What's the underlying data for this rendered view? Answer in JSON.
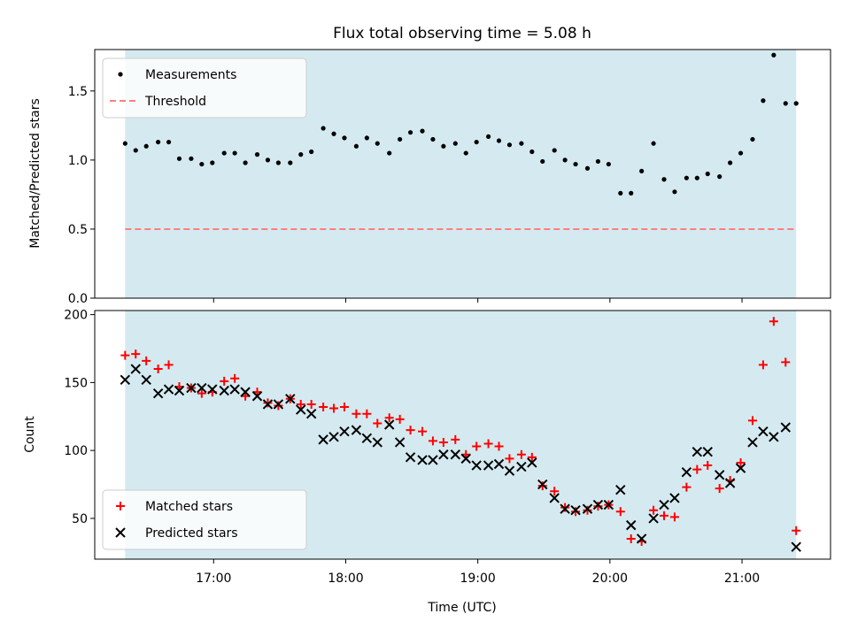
{
  "figure": {
    "title": "Flux total observing time = 5.08 h"
  },
  "chart_data": [
    {
      "type": "scatter",
      "ylabel": "Matched/Predicted stars",
      "xlim": [
        16.1,
        21.67
      ],
      "ylim": [
        0,
        1.8
      ],
      "yticks": [
        0.0,
        0.5,
        1.0,
        1.5
      ],
      "shaded_span": [
        16.33,
        21.41
      ],
      "shade_color": "#d4eaf0",
      "legend_position": "upper left",
      "series": [
        {
          "name": "Measurements",
          "marker": "dot",
          "color": "#000000",
          "x": [
            16.33,
            16.41,
            16.49,
            16.58,
            16.66,
            16.74,
            16.83,
            16.91,
            16.99,
            17.08,
            17.16,
            17.24,
            17.33,
            17.41,
            17.49,
            17.58,
            17.66,
            17.74,
            17.83,
            17.91,
            17.99,
            18.08,
            18.16,
            18.24,
            18.33,
            18.41,
            18.49,
            18.58,
            18.66,
            18.74,
            18.83,
            18.91,
            18.99,
            19.08,
            19.16,
            19.24,
            19.33,
            19.41,
            19.49,
            19.58,
            19.66,
            19.74,
            19.83,
            19.91,
            19.99,
            20.08,
            20.16,
            20.24,
            20.33,
            20.41,
            20.49,
            20.58,
            20.66,
            20.74,
            20.83,
            20.91,
            20.99,
            21.08,
            21.16,
            21.24,
            21.33,
            21.41
          ],
          "y": [
            1.12,
            1.07,
            1.1,
            1.13,
            1.13,
            1.01,
            1.01,
            0.97,
            0.98,
            1.05,
            1.05,
            0.98,
            1.04,
            1.0,
            0.98,
            0.98,
            1.04,
            1.06,
            1.23,
            1.19,
            1.16,
            1.1,
            1.16,
            1.12,
            1.05,
            1.15,
            1.2,
            1.21,
            1.15,
            1.1,
            1.12,
            1.05,
            1.13,
            1.17,
            1.14,
            1.11,
            1.12,
            1.06,
            0.99,
            1.07,
            1.0,
            0.97,
            0.94,
            0.99,
            0.97,
            0.76,
            0.76,
            0.92,
            1.12,
            0.86,
            0.77,
            0.87,
            0.87,
            0.9,
            0.88,
            0.98,
            1.05,
            1.15,
            1.43,
            1.76,
            1.41,
            1.41
          ]
        },
        {
          "name": "Threshold",
          "marker": "dashed-line",
          "color": "#ff7f7f",
          "y": 0.5
        }
      ]
    },
    {
      "type": "scatter",
      "ylabel": "Count",
      "xlabel": "Time (UTC)",
      "xlim": [
        16.1,
        21.67
      ],
      "ylim": [
        20,
        203
      ],
      "yticks": [
        50,
        100,
        150,
        200
      ],
      "xticks": [
        17,
        18,
        19,
        20,
        21
      ],
      "xtick_labels": [
        "17:00",
        "18:00",
        "19:00",
        "20:00",
        "21:00"
      ],
      "shaded_span": [
        16.33,
        21.41
      ],
      "shade_color": "#d4eaf0",
      "legend_position": "lower left",
      "series": [
        {
          "name": "Matched stars",
          "marker": "plus",
          "color": "#ff0000",
          "x": [
            16.33,
            16.41,
            16.49,
            16.58,
            16.66,
            16.74,
            16.83,
            16.91,
            16.99,
            17.08,
            17.16,
            17.24,
            17.33,
            17.41,
            17.49,
            17.58,
            17.66,
            17.74,
            17.83,
            17.91,
            17.99,
            18.08,
            18.16,
            18.24,
            18.33,
            18.41,
            18.49,
            18.58,
            18.66,
            18.74,
            18.83,
            18.91,
            18.99,
            19.08,
            19.16,
            19.24,
            19.33,
            19.41,
            19.49,
            19.58,
            19.66,
            19.74,
            19.83,
            19.91,
            19.99,
            20.08,
            20.16,
            20.24,
            20.33,
            20.41,
            20.49,
            20.58,
            20.66,
            20.74,
            20.83,
            20.91,
            20.99,
            21.08,
            21.16,
            21.24,
            21.33,
            21.41
          ],
          "y": [
            170,
            171,
            166,
            160,
            163,
            147,
            146,
            142,
            143,
            151,
            153,
            140,
            143,
            135,
            133,
            138,
            134,
            134,
            132,
            131,
            132,
            127,
            127,
            120,
            124,
            123,
            115,
            114,
            107,
            106,
            108,
            97,
            103,
            105,
            103,
            94,
            97,
            95,
            74,
            70,
            58,
            55,
            56,
            59,
            60,
            55,
            35,
            33,
            56,
            52,
            51,
            73,
            86,
            89,
            72,
            78,
            91,
            122,
            163,
            195,
            165,
            41
          ]
        },
        {
          "name": "Predicted stars",
          "marker": "x",
          "color": "#000000",
          "x": [
            16.33,
            16.41,
            16.49,
            16.58,
            16.66,
            16.74,
            16.83,
            16.91,
            16.99,
            17.08,
            17.16,
            17.24,
            17.33,
            17.41,
            17.49,
            17.58,
            17.66,
            17.74,
            17.83,
            17.91,
            17.99,
            18.08,
            18.16,
            18.24,
            18.33,
            18.41,
            18.49,
            18.58,
            18.66,
            18.74,
            18.83,
            18.91,
            18.99,
            19.08,
            19.16,
            19.24,
            19.33,
            19.41,
            19.49,
            19.58,
            19.66,
            19.74,
            19.83,
            19.91,
            19.99,
            20.08,
            20.16,
            20.24,
            20.33,
            20.41,
            20.49,
            20.58,
            20.66,
            20.74,
            20.83,
            20.91,
            20.99,
            21.08,
            21.16,
            21.24,
            21.33,
            21.41
          ],
          "y": [
            152,
            160,
            152,
            142,
            145,
            144,
            146,
            146,
            145,
            144,
            145,
            143,
            140,
            134,
            134,
            138,
            130,
            127,
            108,
            110,
            114,
            115,
            109,
            106,
            119,
            106,
            95,
            93,
            93,
            97,
            97,
            94,
            89,
            89,
            90,
            85,
            88,
            91,
            75,
            65,
            57,
            56,
            57,
            60,
            60,
            71,
            45,
            35,
            50,
            60,
            65,
            84,
            99,
            99,
            82,
            76,
            87,
            106,
            114,
            110,
            117,
            29
          ]
        }
      ]
    }
  ]
}
